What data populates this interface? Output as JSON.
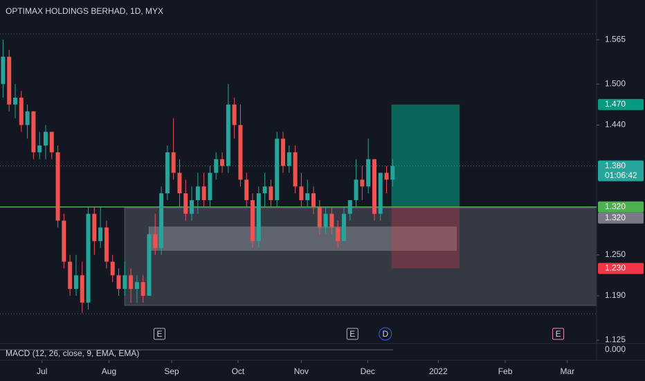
{
  "chart_data": {
    "type": "candlestick",
    "title": "OPTIMAX HOLDINGS BERHAD, 1D, MYX",
    "up_color": "#26a69a",
    "down_color": "#ef5350",
    "open": [
      1.5,
      1.54,
      1.47,
      1.48,
      1.44,
      1.46,
      1.4,
      1.41,
      1.43,
      1.4,
      1.3,
      1.24,
      1.2,
      1.22,
      1.18,
      1.31,
      1.27,
      1.29,
      1.24,
      1.22,
      1.2,
      1.22,
      1.2,
      1.21,
      1.19,
      1.28,
      1.26,
      1.34,
      1.4,
      1.37,
      1.34,
      1.31,
      1.33,
      1.35,
      1.33,
      1.37,
      1.39,
      1.38,
      1.47,
      1.44,
      1.36,
      1.33,
      1.27,
      1.34,
      1.35,
      1.33,
      1.42,
      1.38,
      1.4,
      1.35,
      1.33,
      1.34,
      1.32,
      1.29,
      1.31,
      1.29,
      1.27,
      1.31,
      1.33,
      1.36,
      1.35,
      1.39,
      1.31,
      1.37,
      1.36
    ],
    "high": [
      1.565,
      1.55,
      1.5,
      1.49,
      1.47,
      1.46,
      1.43,
      1.44,
      1.43,
      1.41,
      1.31,
      1.25,
      1.25,
      1.24,
      1.32,
      1.32,
      1.32,
      1.3,
      1.25,
      1.23,
      1.24,
      1.23,
      1.22,
      1.22,
      1.29,
      1.31,
      1.35,
      1.41,
      1.45,
      1.39,
      1.36,
      1.35,
      1.37,
      1.37,
      1.38,
      1.4,
      1.4,
      1.5,
      1.48,
      1.47,
      1.37,
      1.34,
      1.35,
      1.37,
      1.36,
      1.43,
      1.43,
      1.41,
      1.41,
      1.37,
      1.36,
      1.35,
      1.33,
      1.32,
      1.32,
      1.3,
      1.32,
      1.33,
      1.39,
      1.38,
      1.42,
      1.39,
      1.37,
      1.38,
      1.39
    ],
    "low": [
      1.48,
      1.46,
      1.45,
      1.43,
      1.42,
      1.39,
      1.39,
      1.39,
      1.39,
      1.29,
      1.23,
      1.19,
      1.19,
      1.165,
      1.17,
      1.25,
      1.26,
      1.23,
      1.21,
      1.19,
      1.19,
      1.18,
      1.18,
      1.18,
      1.19,
      1.25,
      1.25,
      1.33,
      1.36,
      1.32,
      1.3,
      1.3,
      1.31,
      1.32,
      1.32,
      1.36,
      1.37,
      1.37,
      1.42,
      1.35,
      1.32,
      1.26,
      1.26,
      1.32,
      1.32,
      1.32,
      1.37,
      1.37,
      1.34,
      1.32,
      1.32,
      1.31,
      1.28,
      1.28,
      1.28,
      1.26,
      1.27,
      1.3,
      1.32,
      1.33,
      1.34,
      1.3,
      1.3,
      1.34,
      1.35
    ],
    "close": [
      1.54,
      1.47,
      1.48,
      1.44,
      1.46,
      1.4,
      1.41,
      1.43,
      1.4,
      1.3,
      1.24,
      1.2,
      1.22,
      1.18,
      1.31,
      1.27,
      1.29,
      1.24,
      1.22,
      1.2,
      1.22,
      1.2,
      1.21,
      1.19,
      1.28,
      1.26,
      1.34,
      1.4,
      1.37,
      1.34,
      1.31,
      1.33,
      1.35,
      1.33,
      1.37,
      1.39,
      1.38,
      1.47,
      1.44,
      1.36,
      1.33,
      1.27,
      1.34,
      1.35,
      1.33,
      1.42,
      1.38,
      1.4,
      1.35,
      1.33,
      1.34,
      1.32,
      1.29,
      1.31,
      1.29,
      1.27,
      1.31,
      1.33,
      1.36,
      1.35,
      1.39,
      1.31,
      1.37,
      1.36,
      1.38
    ],
    "xlim": [
      -0.5,
      97.5
    ],
    "xticks": [
      {
        "value": 6.4,
        "label": "Jul"
      },
      {
        "value": 17.4,
        "label": "Aug"
      },
      {
        "value": 27.7,
        "label": "Sep"
      },
      {
        "value": 38.6,
        "label": "Oct"
      },
      {
        "value": 49,
        "label": "Nov"
      },
      {
        "value": 59.9,
        "label": "Dec"
      },
      {
        "value": 71.5,
        "label": "2022"
      },
      {
        "value": 82.5,
        "label": "Feb"
      },
      {
        "value": 92.7,
        "label": "Mar"
      }
    ],
    "ylim": [
      1.12,
      1.623
    ],
    "yticks": [
      1.565,
      {
        "value": 1.5,
        "label": "1.500"
      },
      {
        "value": 1.44,
        "label": "1.440"
      },
      {
        "value": 1.25,
        "label": "1.250"
      },
      {
        "value": 1.19,
        "label": "1.190"
      },
      1.125
    ],
    "price_line": {
      "value": 1.32,
      "label": "1.320"
    },
    "last_price": {
      "value": 1.38,
      "label": "1.380"
    },
    "countdown": "01:06:42",
    "position": {
      "start": 63.8,
      "end": 75,
      "target": {
        "value": 1.47,
        "label": "1.470"
      },
      "entry": {
        "value": 1.32,
        "label": "1.320"
      },
      "stop": {
        "value": 1.23,
        "label": "1.230"
      }
    },
    "events": [
      {
        "x": 25.7,
        "label": "E"
      },
      {
        "x": 57.4,
        "label": "E"
      },
      {
        "x": 62.8,
        "label": "D"
      },
      {
        "x": 91.2,
        "label": "E"
      }
    ],
    "macd": {
      "label": "MACD (12, 26, close, 9, EMA, EMA)",
      "ticks": [
        {
          "value": 0,
          "label": "0.000"
        }
      ]
    }
  }
}
